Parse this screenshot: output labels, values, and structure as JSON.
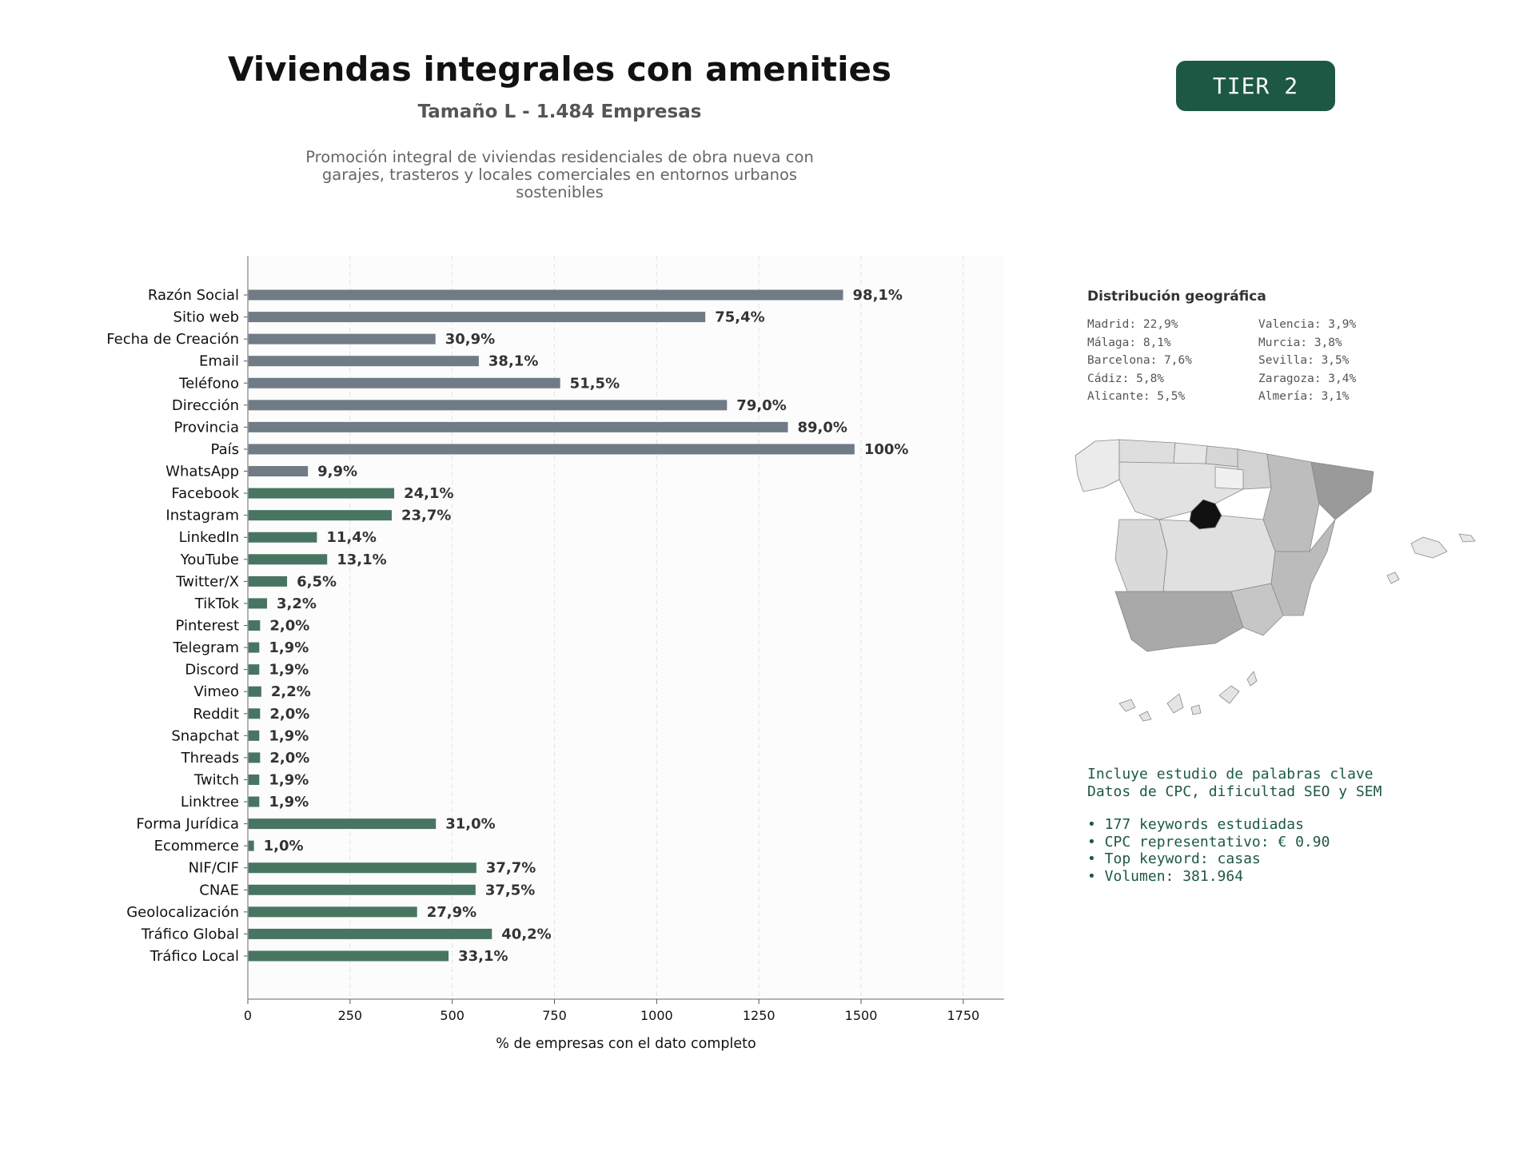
{
  "header": {
    "title": "Viviendas integrales con amenities",
    "subtitle": "Tamaño L - 1.484 Empresas",
    "description": "Promoción integral de viviendas residenciales de obra nueva con garajes, trasteros y locales comerciales en entornos urbanos sostenibles",
    "tier_label": "TIER 2"
  },
  "colors": {
    "gray_bar": "#707b86",
    "green_bar": "#487562",
    "accent": "#1d5844"
  },
  "chart_data": {
    "type": "bar",
    "orientation": "horizontal",
    "title": "",
    "xlabel": "% de empresas con el dato completo",
    "ylabel": "",
    "xlim": [
      0,
      1850
    ],
    "xticks": [
      0,
      250,
      500,
      750,
      1000,
      1250,
      1500,
      1750
    ],
    "grid": "vertical dashed",
    "categories": [
      "Razón Social",
      "Sitio web",
      "Fecha de Creación",
      "Email",
      "Teléfono",
      "Dirección",
      "Provincia",
      "País",
      "WhatsApp",
      "Facebook",
      "Instagram",
      "LinkedIn",
      "YouTube",
      "Twitter/X",
      "TikTok",
      "Pinterest",
      "Telegram",
      "Discord",
      "Vimeo",
      "Reddit",
      "Snapchat",
      "Threads",
      "Twitch",
      "Linktree",
      "Forma Jurídica",
      "Ecommerce",
      "NIF/CIF",
      "CNAE",
      "Geolocalización",
      "Tráfico Global",
      "Tráfico Local"
    ],
    "values": [
      1456,
      1119,
      459,
      565,
      764,
      1172,
      1321,
      1484,
      147,
      358,
      352,
      169,
      194,
      96,
      47,
      30,
      28,
      28,
      33,
      30,
      28,
      30,
      28,
      28,
      460,
      15,
      559,
      557,
      414,
      597,
      491
    ],
    "labels": [
      "98,1%",
      "75,4%",
      "30,9%",
      "38,1%",
      "51,5%",
      "79,0%",
      "89,0%",
      "100%",
      "9,9%",
      "24,1%",
      "23,7%",
      "11,4%",
      "13,1%",
      "6,5%",
      "3,2%",
      "2,0%",
      "1,9%",
      "1,9%",
      "2,2%",
      "2,0%",
      "1,9%",
      "2,0%",
      "1,9%",
      "1,9%",
      "31,0%",
      "1,0%",
      "37,7%",
      "37,5%",
      "27,9%",
      "40,2%",
      "33,1%"
    ],
    "bar_colors": [
      "gray",
      "gray",
      "gray",
      "gray",
      "gray",
      "gray",
      "gray",
      "gray",
      "gray",
      "green",
      "green",
      "green",
      "green",
      "green",
      "green",
      "green",
      "green",
      "green",
      "green",
      "green",
      "green",
      "green",
      "green",
      "green",
      "green",
      "green",
      "green",
      "green",
      "green",
      "green",
      "green"
    ]
  },
  "geo": {
    "title": "Distribución geográfica",
    "items": [
      "Madrid: 22,9%",
      "Valencia: 3,9%",
      "Málaga: 8,1%",
      "Murcia: 3,8%",
      "Barcelona: 7,6%",
      "Sevilla: 3,5%",
      "Cádiz: 5,8%",
      "Zaragoza: 3,4%",
      "Alicante: 5,5%",
      "Almería: 3,1%"
    ]
  },
  "keywords": {
    "line1": "Incluye estudio de palabras clave",
    "line2": "Datos de CPC, dificultad SEO y SEM",
    "bullets": [
      "• 177 keywords estudiadas",
      "• CPC representativo: € 0.90",
      "• Top keyword: casas",
      "• Volumen: 381.964"
    ]
  }
}
